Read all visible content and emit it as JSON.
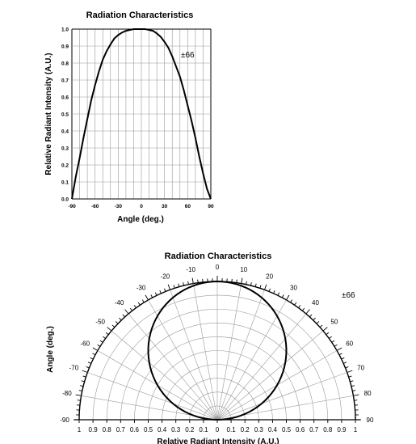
{
  "chart_data": [
    {
      "type": "line",
      "title": "Radiation Characteristics",
      "xlabel": "Angle (deg.)",
      "ylabel": "Relative Radiant Intensity (A.U.)",
      "xlim": [
        -90,
        90
      ],
      "ylim": [
        0,
        1.0
      ],
      "x_ticks": [
        "-90",
        "-60",
        "-30",
        "0",
        "30",
        "60",
        "90"
      ],
      "y_ticks": [
        "0.0",
        "0.1",
        "0.2",
        "0.3",
        "0.4",
        "0.5",
        "0.6",
        "0.7",
        "0.8",
        "0.9",
        "1.0"
      ],
      "grid": true,
      "annotation": "±66",
      "x": [
        -90,
        -85,
        -80,
        -75,
        -70,
        -65,
        -60,
        -55,
        -50,
        -45,
        -40,
        -35,
        -30,
        -25,
        -20,
        -15,
        -10,
        -5,
        0,
        5,
        10,
        15,
        20,
        25,
        30,
        35,
        40,
        45,
        50,
        55,
        60,
        65,
        70,
        75,
        80,
        85,
        90
      ],
      "y": [
        0.0,
        0.13,
        0.24,
        0.36,
        0.47,
        0.58,
        0.67,
        0.75,
        0.82,
        0.87,
        0.91,
        0.945,
        0.965,
        0.98,
        0.99,
        0.995,
        1.0,
        1.0,
        1.0,
        1.0,
        0.995,
        0.99,
        0.975,
        0.955,
        0.925,
        0.89,
        0.84,
        0.78,
        0.72,
        0.64,
        0.55,
        0.46,
        0.36,
        0.25,
        0.15,
        0.06,
        0.0
      ]
    },
    {
      "type": "polar",
      "title": "Radiation Characteristics",
      "xlabel": "Relative Radiant Intensity (A.U.)",
      "ylabel": "Angle (deg.)",
      "angle_ticks_left": [
        "0",
        "-10",
        "-20",
        "-30",
        "-40",
        "-50",
        "-60",
        "-70",
        "-80",
        "-90"
      ],
      "angle_ticks_right": [
        "10",
        "20",
        "30",
        "40",
        "50",
        "60",
        "70",
        "80",
        "90"
      ],
      "radial_ticks_left": [
        "1",
        "0.9",
        "0.8",
        "0.7",
        "0.6",
        "0.5",
        "0.4",
        "0.3",
        "0.2",
        "0.1"
      ],
      "radial_ticks_right": [
        "0",
        "0.1",
        "0.2",
        "0.3",
        "0.4",
        "0.5",
        "0.6",
        "0.7",
        "0.8",
        "0.9",
        "1"
      ],
      "annotation": "±66",
      "pattern": "cosine",
      "r_max": 1.0
    }
  ]
}
